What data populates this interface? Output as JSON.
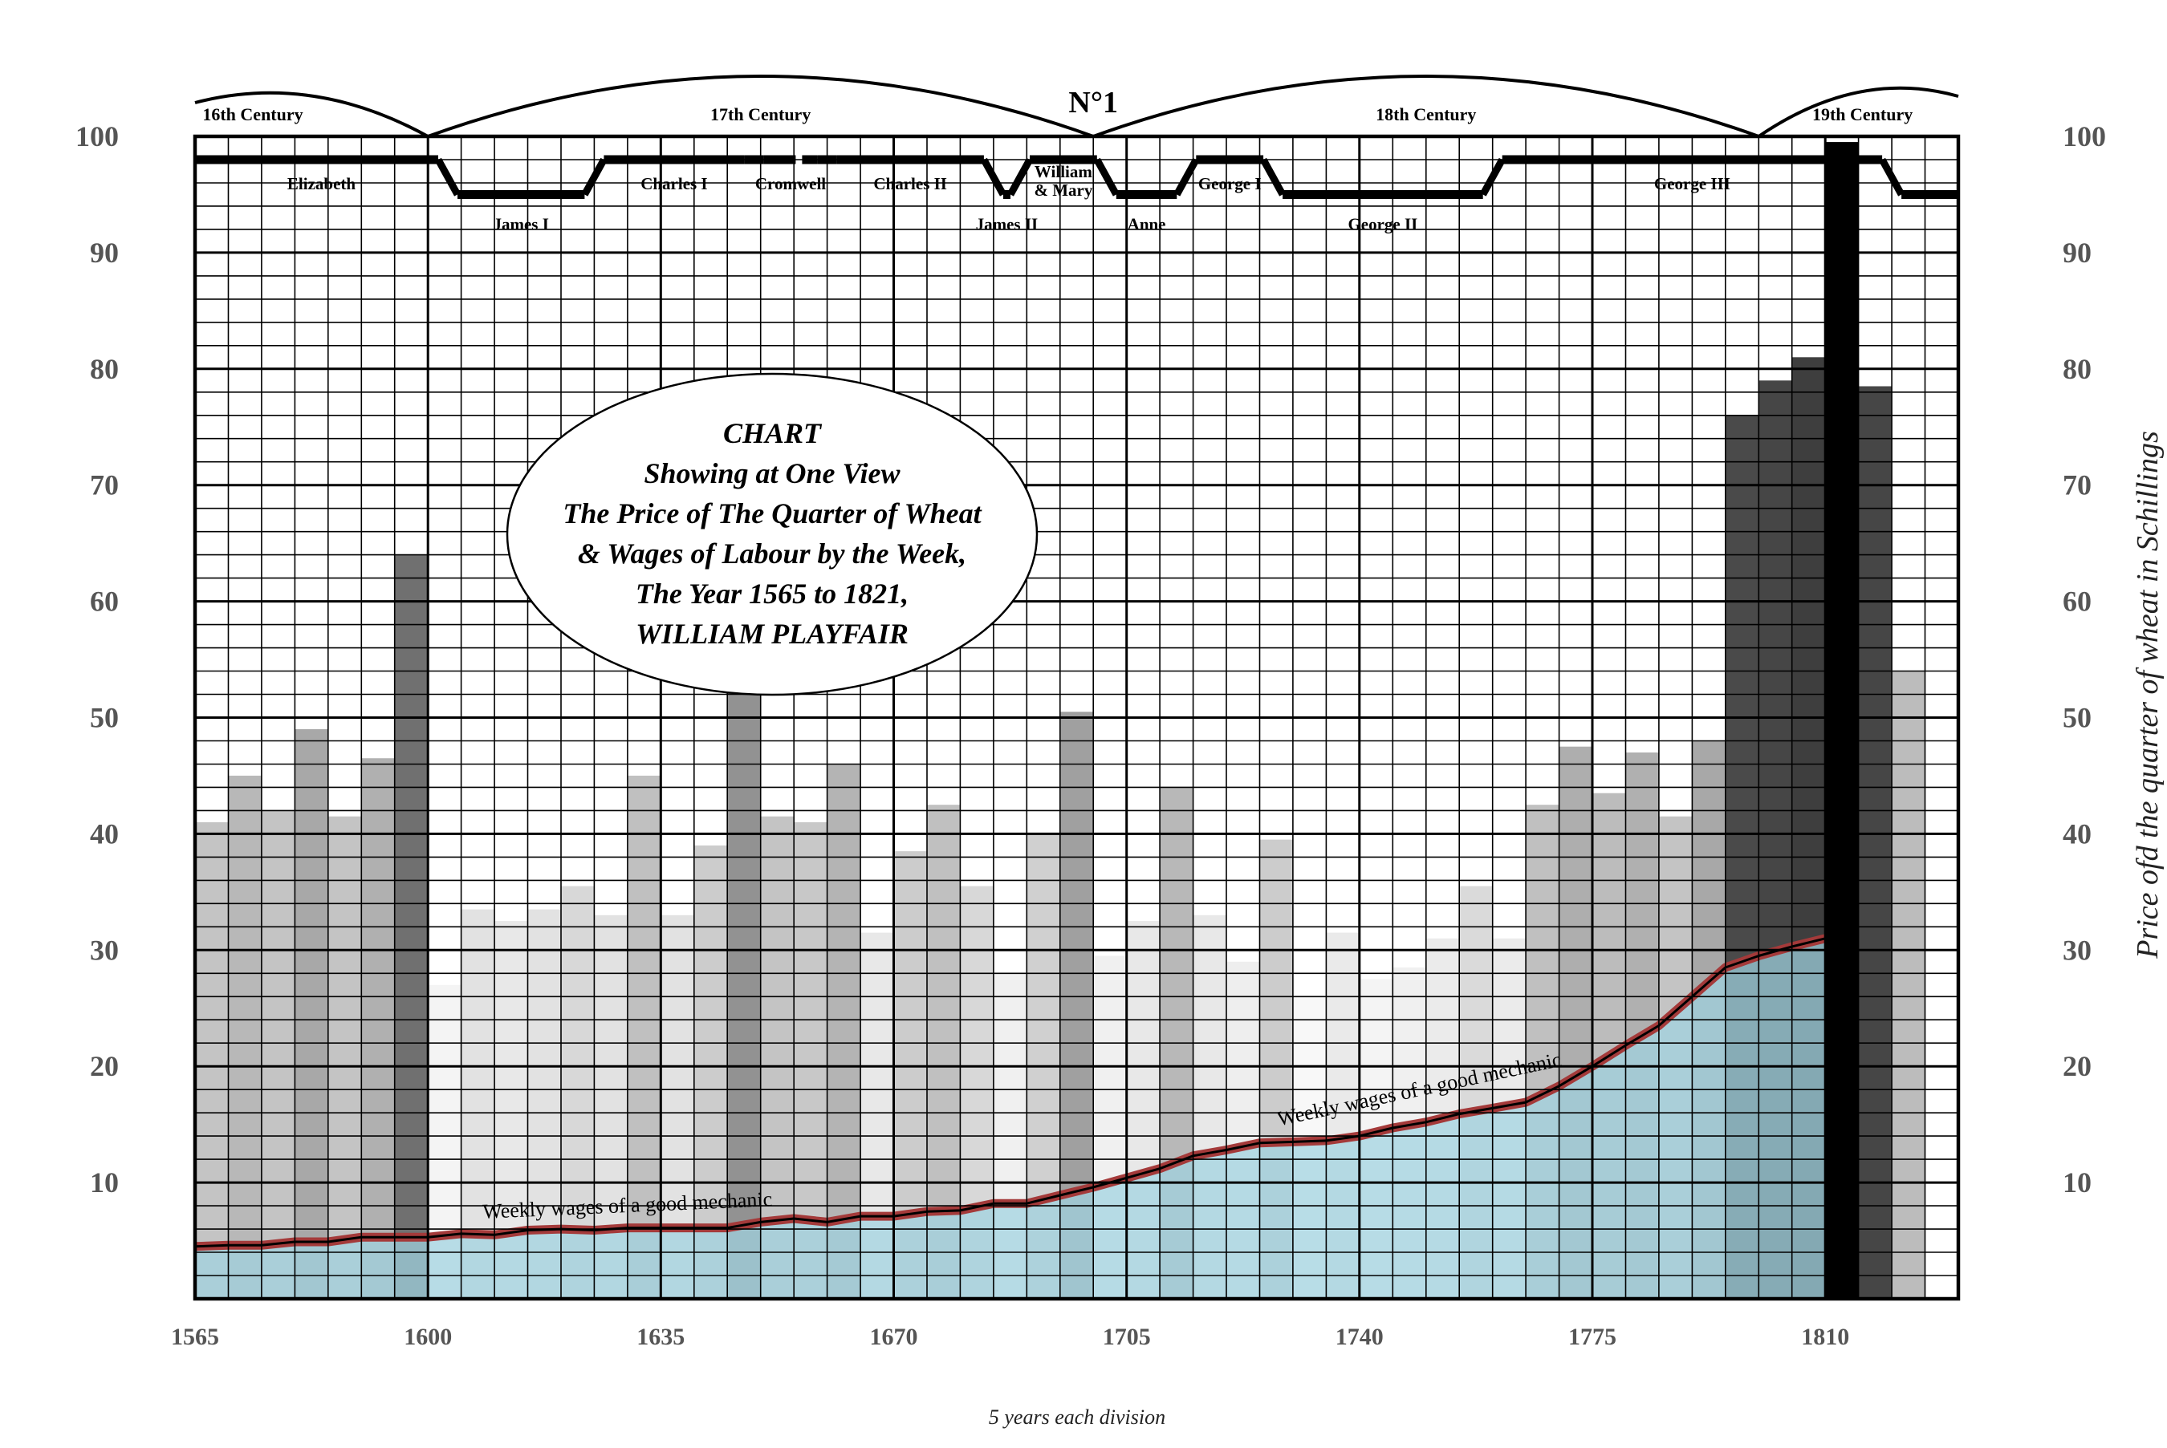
{
  "chart_data": {
    "type": "bar",
    "title_lines": [
      "CHART",
      "Showing at One View",
      "The Price of The Quarter of Wheat",
      "& Wages of Labour by the Week,",
      "The Year 1565 to 1821,",
      "WILLIAM PLAYFAIR"
    ],
    "plate_number": "N°1",
    "xlabel": "5 years each division",
    "ylabel": "Price ofd the quarter of wheat in Schillings",
    "ylim": [
      0,
      100
    ],
    "xlim": [
      1565,
      1830
    ],
    "grid": true,
    "x_ticks": [
      1565,
      1600,
      1635,
      1670,
      1705,
      1740,
      1775,
      1810
    ],
    "y_ticks": [
      10,
      20,
      30,
      40,
      50,
      60,
      70,
      80,
      90,
      100
    ],
    "series": [
      {
        "name": "Price of the quarter of wheat",
        "kind": "bar",
        "x": [
          1565,
          1570,
          1575,
          1580,
          1585,
          1590,
          1595,
          1600,
          1605,
          1610,
          1615,
          1620,
          1625,
          1630,
          1635,
          1640,
          1645,
          1650,
          1655,
          1660,
          1665,
          1670,
          1675,
          1680,
          1685,
          1690,
          1695,
          1700,
          1705,
          1710,
          1715,
          1720,
          1725,
          1730,
          1735,
          1740,
          1745,
          1750,
          1755,
          1760,
          1765,
          1770,
          1775,
          1780,
          1785,
          1790,
          1795,
          1800,
          1805,
          1810,
          1815,
          1820
        ],
        "values": [
          41,
          45,
          42,
          49,
          41.5,
          46.5,
          64,
          27,
          33.5,
          32.5,
          33.5,
          35.5,
          33,
          45,
          33,
          39,
          53,
          41.5,
          41,
          46,
          31.5,
          38.5,
          42.5,
          35.5,
          28,
          40,
          50.5,
          29.5,
          32.5,
          44,
          33,
          29,
          39.5,
          26,
          31.5,
          27.5,
          28.5,
          31,
          35.5,
          31,
          42.5,
          47.5,
          43.5,
          47,
          41.5,
          48,
          76,
          79,
          81,
          99.5,
          78.5,
          54
        ],
        "colors": [
          "#c4c4c4",
          "#b8b8b8",
          "#c4c4c4",
          "#a8a8a8",
          "#c4c4c4",
          "#b0b0b0",
          "#707070",
          "#f4f4f4",
          "#e2e2e2",
          "#e8e8e8",
          "#e2e2e2",
          "#d8d8d8",
          "#e2e2e2",
          "#c0c0c0",
          "#e2e2e2",
          "#cccccc",
          "#929292",
          "#c4c4c4",
          "#c8c8c8",
          "#b4b4b4",
          "#e8e8e8",
          "#cccccc",
          "#c0c0c0",
          "#d8d8d8",
          "#f0f0f0",
          "#d0d0d0",
          "#a0a0a0",
          "#f0f0f0",
          "#e8e8e8",
          "#b8b8b8",
          "#e8e8e8",
          "#eeeeee",
          "#cccccc",
          "#f8f8f8",
          "#eaeaea",
          "#f4f4f4",
          "#f0f0f0",
          "#ebebeb",
          "#dadada",
          "#ebebeb",
          "#c0c0c0",
          "#aeaeae",
          "#bcbcbc",
          "#b0b0b0",
          "#c4c4c4",
          "#a8a8a8",
          "#4a4a4a",
          "#464646",
          "#3e3e3e",
          "#000000",
          "#464646",
          "#bcbcbc"
        ]
      },
      {
        "name": "Weekly wages of a good mechanic",
        "kind": "area",
        "x": [
          1565,
          1570,
          1575,
          1580,
          1585,
          1590,
          1595,
          1600,
          1605,
          1610,
          1615,
          1620,
          1625,
          1630,
          1635,
          1640,
          1645,
          1650,
          1655,
          1660,
          1665,
          1670,
          1675,
          1680,
          1685,
          1690,
          1695,
          1700,
          1705,
          1710,
          1715,
          1720,
          1725,
          1730,
          1735,
          1740,
          1745,
          1750,
          1755,
          1760,
          1765,
          1770,
          1775,
          1780,
          1785,
          1790,
          1795,
          1800,
          1805,
          1810
        ],
        "values": [
          4.5,
          4.6,
          4.6,
          4.9,
          4.9,
          5.3,
          5.3,
          5.3,
          5.6,
          5.5,
          5.9,
          6,
          5.9,
          6.1,
          6.1,
          6.1,
          6.1,
          6.6,
          6.9,
          6.6,
          7.1,
          7.1,
          7.5,
          7.6,
          8.2,
          8.2,
          8.9,
          9.6,
          10.4,
          11.2,
          12.3,
          12.8,
          13.4,
          13.5,
          13.6,
          14,
          14.7,
          15.2,
          15.9,
          16.4,
          16.9,
          18.3,
          20,
          21.8,
          23.5,
          26,
          28.5,
          29.5,
          30.3,
          31
        ]
      }
    ],
    "annotations": {
      "centuries": [
        {
          "label": "16th Century",
          "start": 1565,
          "end": 1600
        },
        {
          "label": "17th Century",
          "start": 1600,
          "end": 1700
        },
        {
          "label": "18th Century",
          "start": 1700,
          "end": 1800
        },
        {
          "label": "19th Century",
          "start": 1800,
          "end": 1830
        }
      ],
      "reigns": [
        {
          "label": "Elizabeth",
          "start": 1565,
          "end": 1603,
          "row": "upper"
        },
        {
          "label": "James I",
          "start": 1603,
          "end": 1625,
          "row": "lower"
        },
        {
          "label": "Charles I",
          "start": 1625,
          "end": 1649,
          "row": "upper"
        },
        {
          "label": "Cromwell",
          "start": 1649,
          "end": 1660,
          "row": "upper",
          "dashed": true
        },
        {
          "label": "Charles II",
          "start": 1660,
          "end": 1685,
          "row": "upper"
        },
        {
          "label": "James II",
          "start": 1685,
          "end": 1689,
          "row": "lower"
        },
        {
          "label": "William",
          "label2": "& Mary",
          "start": 1689,
          "end": 1702,
          "row": "upper"
        },
        {
          "label": "Anne",
          "start": 1702,
          "end": 1714,
          "row": "lower"
        },
        {
          "label": "George I",
          "start": 1714,
          "end": 1727,
          "row": "upper"
        },
        {
          "label": "George II",
          "start": 1727,
          "end": 1760,
          "row": "lower"
        },
        {
          "label": "George III",
          "start": 1760,
          "end": 1820,
          "row": "upper"
        },
        {
          "label": "",
          "start": 1820,
          "end": 1830,
          "row": "lower"
        }
      ],
      "wage_labels": [
        "Weekly wages of a good mechanic",
        "Weekly wages of a good mechanic"
      ]
    }
  }
}
